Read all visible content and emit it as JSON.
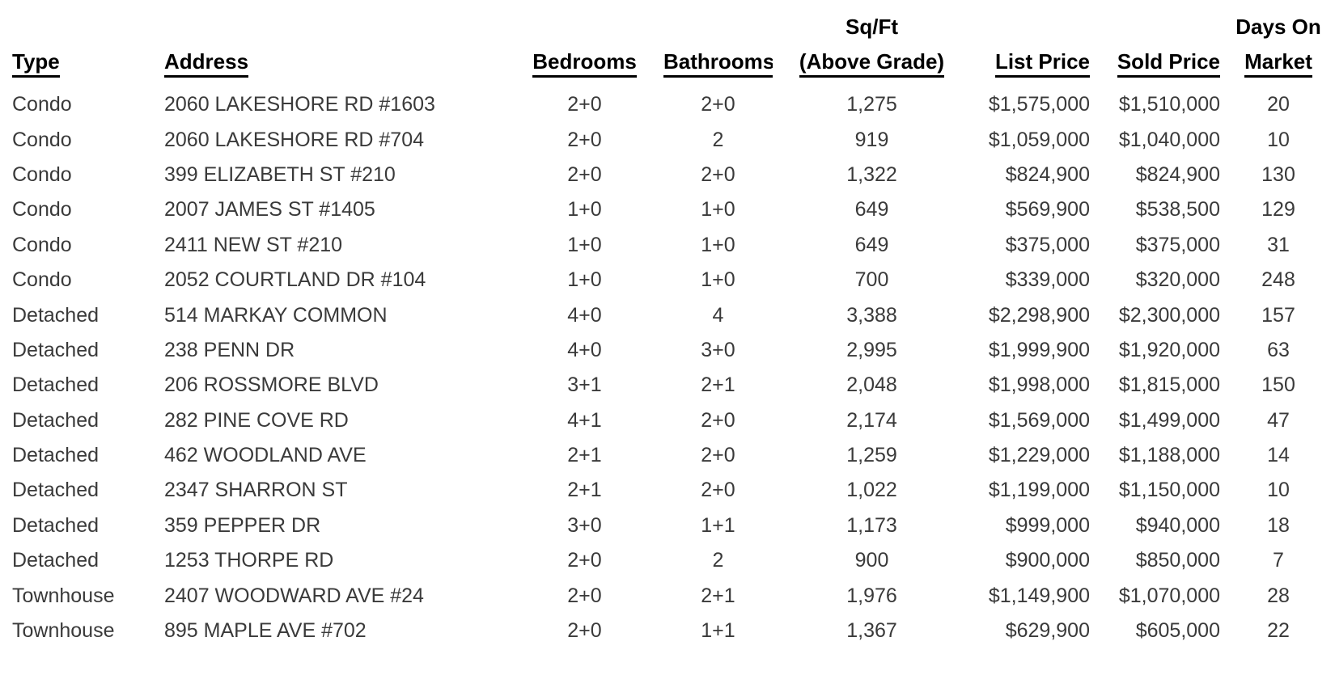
{
  "table": {
    "columns": [
      {
        "id": "type",
        "label": "Type",
        "align": "left"
      },
      {
        "id": "address",
        "label": "Address",
        "align": "left"
      },
      {
        "id": "bedrooms",
        "label": "Bedrooms",
        "align": "center"
      },
      {
        "id": "bathrooms",
        "label": "Bathrooms",
        "align": "center"
      },
      {
        "id": "sqft-above-grade",
        "label_top": "Sq/Ft",
        "label": "(Above Grade)",
        "align": "center"
      },
      {
        "id": "list-price",
        "label": "List Price",
        "align": "right"
      },
      {
        "id": "sold-price",
        "label": "Sold Price",
        "align": "right"
      },
      {
        "id": "days-on-market",
        "label_top": "Days On",
        "label": "Market",
        "align": "center"
      }
    ],
    "rows": [
      [
        "Condo",
        "2060 LAKESHORE RD #1603",
        "2+0",
        "2+0",
        "1,275",
        "$1,575,000",
        "$1,510,000",
        "20"
      ],
      [
        "Condo",
        "2060 LAKESHORE RD #704",
        "2+0",
        "2",
        "919",
        "$1,059,000",
        "$1,040,000",
        "10"
      ],
      [
        "Condo",
        "399 ELIZABETH ST #210",
        "2+0",
        "2+0",
        "1,322",
        "$824,900",
        "$824,900",
        "130"
      ],
      [
        "Condo",
        "2007 JAMES ST #1405",
        "1+0",
        "1+0",
        "649",
        "$569,900",
        "$538,500",
        "129"
      ],
      [
        "Condo",
        "2411 NEW ST #210",
        "1+0",
        "1+0",
        "649",
        "$375,000",
        "$375,000",
        "31"
      ],
      [
        "Condo",
        "2052 COURTLAND DR #104",
        "1+0",
        "1+0",
        "700",
        "$339,000",
        "$320,000",
        "248"
      ],
      [
        "Detached",
        "514 MARKAY COMMON",
        "4+0",
        "4",
        "3,388",
        "$2,298,900",
        "$2,300,000",
        "157"
      ],
      [
        "Detached",
        "238 PENN DR",
        "4+0",
        "3+0",
        "2,995",
        "$1,999,900",
        "$1,920,000",
        "63"
      ],
      [
        "Detached",
        "206 ROSSMORE BLVD",
        "3+1",
        "2+1",
        "2,048",
        "$1,998,000",
        "$1,815,000",
        "150"
      ],
      [
        "Detached",
        "282 PINE COVE RD",
        "4+1",
        "2+0",
        "2,174",
        "$1,569,000",
        "$1,499,000",
        "47"
      ],
      [
        "Detached",
        "462 WOODLAND AVE",
        "2+1",
        "2+0",
        "1,259",
        "$1,229,000",
        "$1,188,000",
        "14"
      ],
      [
        "Detached",
        "2347 SHARRON ST",
        "2+1",
        "2+0",
        "1,022",
        "$1,199,000",
        "$1,150,000",
        "10"
      ],
      [
        "Detached",
        "359 PEPPER DR",
        "3+0",
        "1+1",
        "1,173",
        "$999,000",
        "$940,000",
        "18"
      ],
      [
        "Detached",
        "1253 THORPE RD",
        "2+0",
        "2",
        "900",
        "$900,000",
        "$850,000",
        "7"
      ],
      [
        "Townhouse",
        "2407 WOODWARD AVE #24",
        "2+0",
        "2+1",
        "1,976",
        "$1,149,900",
        "$1,070,000",
        "28"
      ],
      [
        "Townhouse",
        "895 MAPLE AVE #702",
        "2+0",
        "1+1",
        "1,367",
        "$629,900",
        "$605,000",
        "22"
      ]
    ],
    "colors": {
      "header_text": "#000000",
      "body_text": "#3a3a3a",
      "background": "#ffffff"
    }
  }
}
